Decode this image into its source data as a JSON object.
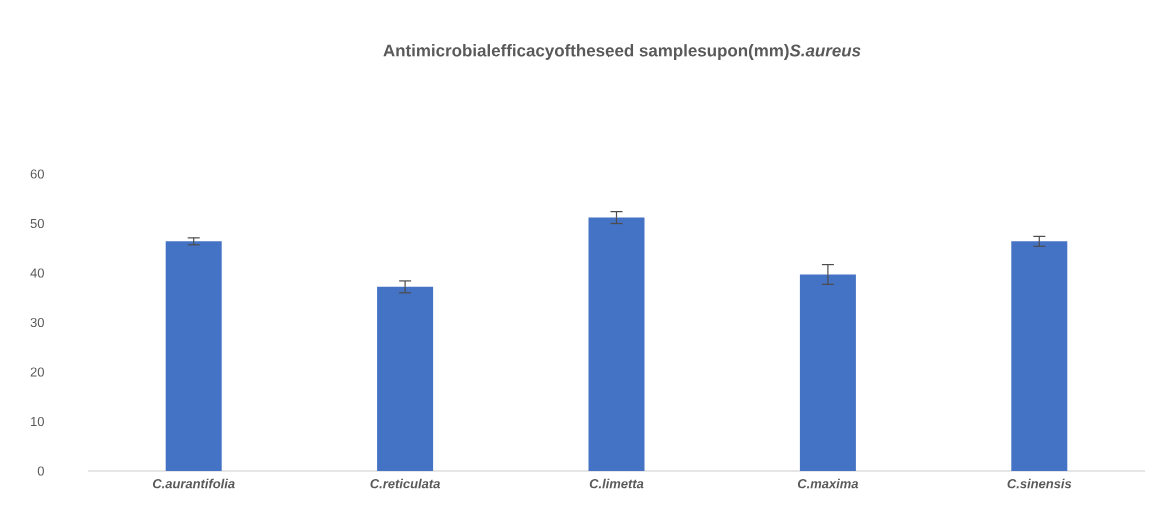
{
  "chart_data": {
    "type": "bar",
    "title": "Antimicrobialefficacyoftheseed samplesupon(mm)*S.aureus*",
    "categories": [
      "C.aurantifolia",
      "C.reticulata",
      "C.limetta",
      "C.maxima",
      "C.sinensis"
    ],
    "values": [
      46.4,
      37.2,
      51.2,
      39.7,
      46.4
    ],
    "errors": [
      0.7,
      1.2,
      1.2,
      2.0,
      1.0
    ],
    "color": "#4472c4",
    "ylim": [
      0,
      60
    ],
    "yticks": [
      0,
      10,
      20,
      30,
      40,
      50,
      60
    ]
  }
}
